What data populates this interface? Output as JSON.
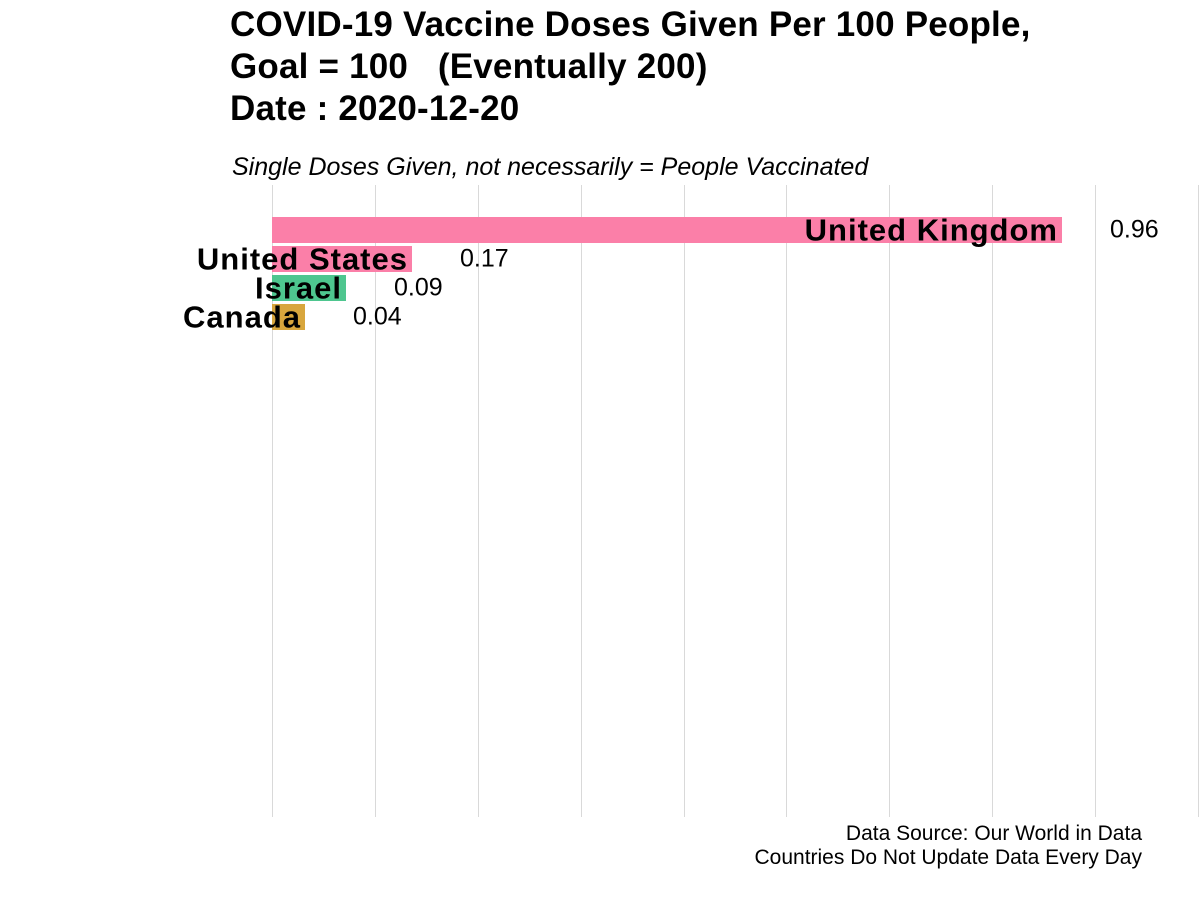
{
  "chart_data": {
    "type": "bar",
    "orientation": "horizontal",
    "title_lines": [
      "COVID-19 Vaccine Doses Given Per 100 People,",
      "Goal = 100   (Eventually 200)",
      "Date : 2020-12-20"
    ],
    "subtitle": "Single Doses Given, not necessarily = People Vaccinated",
    "categories": [
      "United Kingdom",
      "United States",
      "Israel",
      "Canada"
    ],
    "values": [
      0.96,
      0.17,
      0.09,
      0.04
    ],
    "value_labels": [
      "0.96",
      "0.17",
      "0.09",
      "0.04"
    ],
    "bar_colors": [
      "#FB7FA8",
      "#FB7FA8",
      "#4EC68F",
      "#D8A63D"
    ],
    "xlim": [
      0,
      1.128
    ],
    "grid_interval": 0.125,
    "grid_color": "#D9D9D9",
    "grid": "vertical-only",
    "legend": "none",
    "text_color": "#000000",
    "background_color": "#FFFFFF",
    "footer_lines": [
      "Data Source: Our World in Data",
      "Countries Do Not Update Data Every Day"
    ]
  }
}
